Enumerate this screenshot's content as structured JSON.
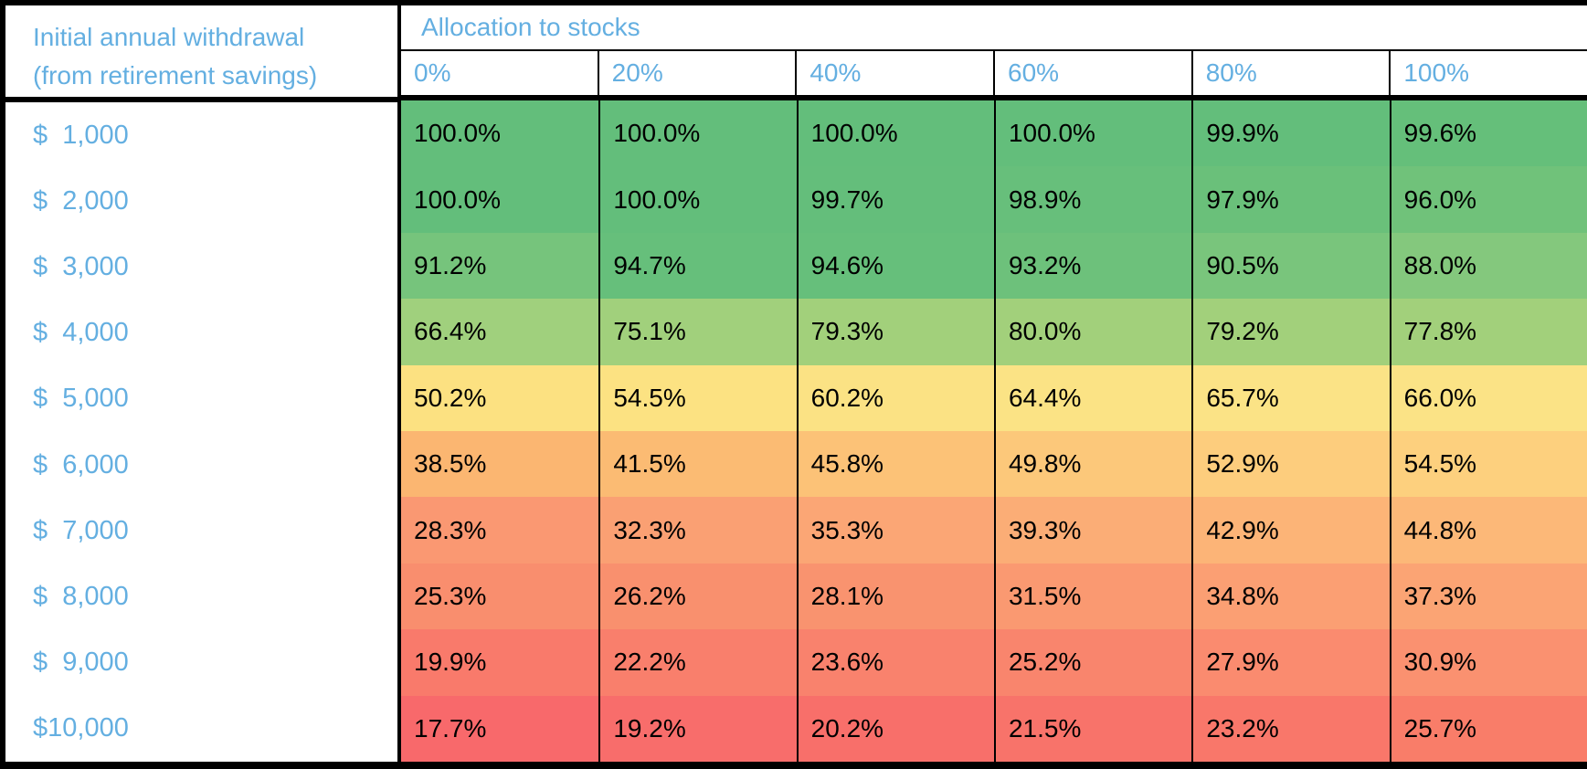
{
  "chart_data": {
    "type": "heatmap",
    "row_axis_title_line1": "Initial annual withdrawal",
    "row_axis_title_line2": "(from retirement savings)",
    "col_axis_title": "Allocation to stocks",
    "columns": [
      "0%",
      "20%",
      "40%",
      "60%",
      "80%",
      "100%"
    ],
    "row_labels": [
      "$  1,000",
      "$  2,000",
      "$  3,000",
      "$  4,000",
      "$  5,000",
      "$  6,000",
      "$  7,000",
      "$  8,000",
      "$  9,000",
      "$10,000"
    ],
    "values": [
      [
        100.0,
        100.0,
        100.0,
        100.0,
        99.9,
        99.6
      ],
      [
        100.0,
        100.0,
        99.7,
        98.9,
        97.9,
        96.0
      ],
      [
        91.2,
        94.7,
        94.6,
        93.2,
        90.5,
        88.0
      ],
      [
        66.4,
        75.1,
        79.3,
        80.0,
        79.2,
        77.8
      ],
      [
        50.2,
        54.5,
        60.2,
        64.4,
        65.7,
        66.0
      ],
      [
        38.5,
        41.5,
        45.8,
        49.8,
        52.9,
        54.5
      ],
      [
        28.3,
        32.3,
        35.3,
        39.3,
        42.9,
        44.8
      ],
      [
        25.3,
        26.2,
        28.1,
        31.5,
        34.8,
        37.3
      ],
      [
        19.9,
        22.2,
        23.6,
        25.2,
        27.9,
        30.9
      ],
      [
        17.7,
        19.2,
        20.2,
        21.5,
        23.2,
        25.7
      ]
    ],
    "value_suffix": "%",
    "value_decimals": 1
  },
  "colors": {
    "header_text": "#64AFE1",
    "cell_text": "#000000",
    "border": "#000000",
    "heatmap_scale_low": "#F8696B",
    "heatmap_scale_mid": "#FFEB84",
    "heatmap_scale_high": "#63BE7B",
    "row_gradient_anchors": [
      {
        "min": "#65BF7A",
        "max": "#63BE7B"
      },
      {
        "min": "#70C27A",
        "max": "#63BE7B"
      },
      {
        "min": "#84C87D",
        "max": "#66BF7B"
      },
      {
        "min": "#A0D07D",
        "max": "#A2D07B"
      },
      {
        "min": "#FCE181",
        "max": "#FBE386"
      },
      {
        "min": "#FBB671",
        "max": "#FDD07E"
      },
      {
        "min": "#FA9872",
        "max": "#FCB878"
      },
      {
        "min": "#F98E6E",
        "max": "#FBA474"
      },
      {
        "min": "#F97A6B",
        "max": "#FA9170"
      },
      {
        "min": "#F8696B",
        "max": "#F97D69"
      }
    ]
  }
}
